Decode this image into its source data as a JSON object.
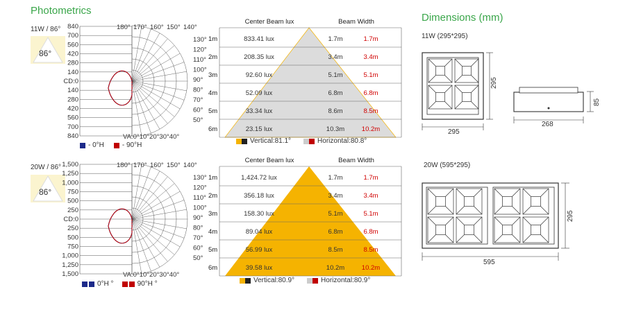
{
  "titles": {
    "photometrics": "Photometrics",
    "dimensions": "Dimensions (mm)"
  },
  "colors": {
    "accent_green": "#3aa64a",
    "cone_gray": "#dcdcdc",
    "cone_yellow": "#f5b301",
    "curve_red": "#c00000",
    "curve_navy": "#1c2a8a",
    "beam_red": "#d00000"
  },
  "panels": [
    {
      "model_label": "11W / 86°",
      "beam_angle_badge": "86°",
      "scale_labels": [
        "840",
        "700",
        "560",
        "420",
        "280",
        "140",
        "CD:0",
        "140",
        "280",
        "420",
        "560",
        "700",
        "840"
      ],
      "top_angle_labels": [
        "180°",
        "170°",
        "160°",
        "150°",
        "140°"
      ],
      "right_angle_labels": [
        "130°",
        "120°",
        "110°",
        "100°",
        "90°",
        "80°",
        "70°",
        "60°",
        "50°"
      ],
      "bottom_axis_label": "VA:0°10°20°30°40°",
      "curve_legend": [
        {
          "text": "- 0°H",
          "color": "#1c2a8a"
        },
        {
          "text": "- 90°H",
          "color": "#c00000"
        }
      ],
      "table": {
        "header_lux": "Center Beam lux",
        "header_width": "Beam Width",
        "cone_color": "gray",
        "rows": [
          {
            "distance": "1m",
            "lux": "833.41 lux",
            "width": "1.7m",
            "width_alt": "1.7m"
          },
          {
            "distance": "2m",
            "lux": "208.35 lux",
            "width": "3.4m",
            "width_alt": "3.4m"
          },
          {
            "distance": "3m",
            "lux": "92.60 lux",
            "width": "5.1m",
            "width_alt": "5.1m"
          },
          {
            "distance": "4m",
            "lux": "52.09 lux",
            "width": "6.8m",
            "width_alt": "6.8m"
          },
          {
            "distance": "5m",
            "lux": "33.34 lux",
            "width": "8.6m",
            "width_alt": "8.5m"
          },
          {
            "distance": "6m",
            "lux": "23.15 lux",
            "width": "10.3m",
            "width_alt": "10.2m"
          }
        ]
      },
      "angle_legend": {
        "vertical": "Vertical:81.1°",
        "horizontal": "Horizontal:80.8°"
      }
    },
    {
      "model_label": "20W / 86°",
      "beam_angle_badge": "86°",
      "scale_labels": [
        "1,500",
        "1,250",
        "1,000",
        "750",
        "500",
        "250",
        "CD:0",
        "250",
        "500",
        "750",
        "1,000",
        "1,250",
        "1,500"
      ],
      "top_angle_labels": [
        "180°",
        "170°",
        "160°",
        "150°",
        "140°"
      ],
      "right_angle_labels": [
        "130°",
        "120°",
        "110°",
        "100°",
        "90°",
        "80°",
        "70°",
        "60°",
        "50°"
      ],
      "bottom_axis_label": "VA:0°10°20°30°40°",
      "curve_legend": [
        {
          "text": "0°H °",
          "color": "#1c2a8a"
        },
        {
          "text": "90°H °",
          "color": "#c00000"
        }
      ],
      "table": {
        "header_lux": "Center Beam lux",
        "header_width": "Beam Width",
        "cone_color": "yellow",
        "rows": [
          {
            "distance": "1m",
            "lux": "1,424.72 lux",
            "width": "1.7m",
            "width_alt": "1.7m"
          },
          {
            "distance": "2m",
            "lux": "356.18 lux",
            "width": "3.4m",
            "width_alt": "3.4m"
          },
          {
            "distance": "3m",
            "lux": "158.30 lux",
            "width": "5.1m",
            "width_alt": "5.1m"
          },
          {
            "distance": "4m",
            "lux": "89.04 lux",
            "width": "6.8m",
            "width_alt": "6.8m"
          },
          {
            "distance": "5m",
            "lux": "56.99 lux",
            "width": "8.5m",
            "width_alt": "8.5m"
          },
          {
            "distance": "6m",
            "lux": "39.58 lux",
            "width": "10.2m",
            "width_alt": "10.2m"
          }
        ]
      },
      "angle_legend": {
        "vertical": "Vertical:80.9°",
        "horizontal": "Horizontal:80.9°"
      }
    }
  ],
  "dimensions": [
    {
      "label": "11W (295*295)",
      "width": "295",
      "height": "295",
      "side_width": "268",
      "side_height": "85"
    },
    {
      "label": "20W (595*295)",
      "width": "595",
      "height": "295"
    }
  ]
}
